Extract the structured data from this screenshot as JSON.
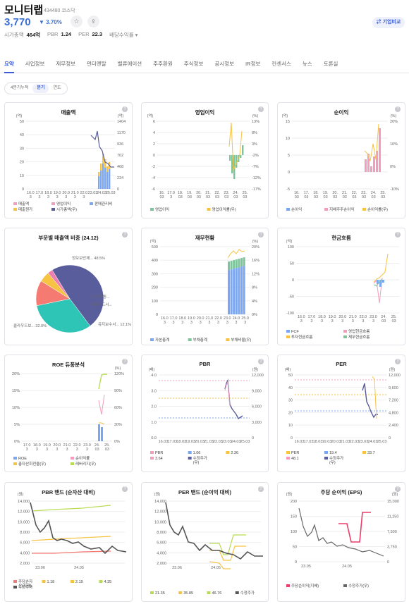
{
  "header": {
    "title": "모니터랩",
    "code": "434480 코스닥",
    "price": "3,770",
    "change": "▼ 3.70%",
    "star_icon": "☆",
    "share_icon": "⇪",
    "compare_button": "⇄ 기업비교",
    "metrics": [
      {
        "label": "시가총액",
        "value": "464억"
      },
      {
        "label": "PBR",
        "value": "1.24"
      },
      {
        "label": "PER",
        "value": "22.3"
      },
      {
        "label": "배당수익률 ▾",
        "value": ""
      }
    ]
  },
  "tabs": [
    "요약",
    "사업정보",
    "재무정보",
    "펀더멘탈",
    "밸류에이션",
    "주주환원",
    "주식정보",
    "공시정보",
    "IR정보",
    "컨센서스",
    "뉴스",
    "토론실"
  ],
  "period": [
    "4분기누적",
    "분기",
    "연도"
  ],
  "colors": {
    "accent": "#3b5bd8",
    "blue": "#7aa6f2",
    "orange": "#f6c343",
    "pink": "#f39cbe",
    "green": "#7cc49a",
    "purple": "#5a5d9c",
    "red": "#e83e6a"
  },
  "cards": {
    "sales": {
      "title": "매출액",
      "yl": "(억)",
      "yr": "(억)",
      "yl_ticks": [
        "50",
        "40",
        "30",
        "20",
        "10",
        "0"
      ],
      "yr_ticks": [
        "1404",
        "1170",
        "936",
        "702",
        "468",
        "234",
        "0"
      ],
      "x": [
        "16.0\n3",
        "17.0\n3",
        "18.0\n3",
        "19.0\n3",
        "20.0\n3",
        "21.0\n3",
        "22.0\n3",
        "23.03",
        "24.03",
        "25.03"
      ],
      "legend": [
        "매출액",
        "영업이익",
        "판매관리비",
        "매출원가",
        "시가총액(우)"
      ]
    },
    "op": {
      "title": "영업이익",
      "yl": "(억)",
      "yr": "(%)",
      "yl_ticks": [
        "6",
        "4",
        "2",
        "0",
        "-2",
        "-4",
        "-6"
      ],
      "yr_ticks": [
        "13%",
        "8%",
        "3%",
        "-2%",
        "-7%",
        "-12%",
        "-17%"
      ],
      "x": [
        "16.\n03",
        "17.0\n3",
        "18.\n03",
        "19.\n03",
        "20.\n03",
        "21.\n03",
        "22.\n03",
        "23.\n03",
        "24.\n03",
        "25.\n03"
      ],
      "legend": [
        "영업이익",
        "영업이익률(우)"
      ]
    },
    "net": {
      "title": "순이익",
      "yl": "(억)",
      "yr": "(%)",
      "yl_ticks": [
        "15",
        "10",
        "5",
        "0",
        "-5"
      ],
      "yr_ticks": [
        "20%",
        "10%",
        "0%",
        "-10%"
      ],
      "x": [
        "16.\n03",
        "17.\n03",
        "18.\n03",
        "19.\n03",
        "20.\n03",
        "21.\n03",
        "22.\n03",
        "23.\n03",
        "24.\n03",
        "25.\n03"
      ],
      "legend": [
        "순이익",
        "지배주주순이익",
        "순이익률(우)"
      ]
    },
    "segment": {
      "title": "부문별 매출액 비중 (24.12)",
      "chart_data": {
        "type": "pie",
        "labels": [
          "정보보안제...",
          "클라우드보...",
          "유지보수서...",
          "매니지드서...",
          "기타(부동..."
        ],
        "values": [
          48.5,
          32.0,
          12.1,
          5.0,
          2.4
        ],
        "colors": [
          "#5a5d9c",
          "#2ec4b6",
          "#f47a72",
          "#f6c343",
          "#ef7fb0"
        ],
        "display": [
          "정보보안제... 48.5%",
          "클라우드보... 32.0%",
          "유지보수서... 12.1%",
          "매니지드서...",
          "기타(부동..."
        ]
      }
    },
    "fin": {
      "title": "재무현황",
      "yl": "(억)",
      "yr": "(%)",
      "yl_ticks": [
        "500",
        "400",
        "300",
        "200",
        "100",
        "0"
      ],
      "yr_ticks": [
        "20%",
        "16%",
        "12%",
        "8%",
        "4%",
        "0%"
      ],
      "x": [
        "16.0\n3",
        "17.0\n3",
        "18.0\n3",
        "19.0\n3",
        "20.0\n3",
        "21.0\n3",
        "22.0\n3",
        "23.0\n3",
        "24.0\n3",
        "25.0\n3"
      ],
      "legend": [
        "자본총계",
        "부채총계",
        "부채비율(우)"
      ]
    },
    "cash": {
      "title": "현금흐름",
      "yl": "(억)",
      "yl_ticks": [
        "100",
        "50",
        "0",
        "-50",
        "-100"
      ],
      "x": [
        "16.0\n3",
        "17.0\n3",
        "18.0\n3",
        "19.0\n3",
        "20.0\n3",
        "21.0\n3",
        "22.0\n3",
        "23.0\n3",
        "24.\n03",
        "25.\n03"
      ],
      "legend": [
        "FCF",
        "영업현금흐름",
        "투자현금흐름",
        "재무현금흐름"
      ]
    },
    "roe": {
      "title": "ROE 듀퐁분석",
      "yr": "(%)",
      "yl_ticks": [
        "20%",
        "15%",
        "10%",
        "5%",
        "0%"
      ],
      "yr_ticks": [
        "120%",
        "90%",
        "60%",
        "30%",
        "0%"
      ],
      "x": [
        "17.0\n3",
        "18.0\n3",
        "19.0\n3",
        "20.0\n3",
        "21.0\n3",
        "22.0\n3",
        "23.0\n3",
        "24.\n03",
        "25.\n03"
      ],
      "legend": [
        "ROE",
        "순이익률",
        "총자산회전율(우)",
        "레버리지(우)"
      ]
    },
    "pbr": {
      "title": "PBR",
      "yl": "(배)",
      "yr": "(원)",
      "yl_ticks": [
        "4.0",
        "3.0",
        "2.0",
        "1.0",
        "0.0"
      ],
      "yr_ticks": [
        "12,000",
        "9,000",
        "6,000",
        "3,000",
        "0"
      ],
      "x": [
        "16.03",
        "17.03",
        "18.03",
        "19.03",
        "20.03",
        "21.03",
        "22.03",
        "23.03",
        "24.03",
        "25.03"
      ],
      "legend": [
        "PBR",
        "1.06",
        "2.36",
        "3.64",
        "수정주가\n(우)"
      ]
    },
    "per": {
      "title": "PER",
      "yl": "(배)",
      "yr": "(원)",
      "yl_ticks": [
        "50",
        "40",
        "30",
        "20",
        "10",
        "0"
      ],
      "yr_ticks": [
        "12,000",
        "9,600",
        "7,200",
        "4,800",
        "2,400",
        "0"
      ],
      "x": [
        "16.03",
        "17.03",
        "18.03",
        "19.03",
        "20.03",
        "21.03",
        "22.03",
        "23.03",
        "24.03",
        "25.03"
      ],
      "legend": [
        "PER",
        "19.4",
        "33.7",
        "48.1",
        "수정주가\n(우)"
      ]
    },
    "pbrband": {
      "title": "PBR 밴드 (순자산 대비)",
      "yl": "(원)",
      "yl_ticks": [
        "14,000",
        "12,000",
        "10,000",
        "8,000",
        "6,000",
        "4,000",
        "2,000"
      ],
      "x": [
        "23.06",
        "24.05"
      ],
      "legend": [
        "주당순자\n산(지배)",
        "1.18",
        "2.19",
        "4.35",
        "수정주가"
      ]
    },
    "perband": {
      "title": "PER 밴드 (순이익 대비)",
      "yl": "(원)",
      "yl_ticks": [
        "14,000",
        "12,000",
        "10,000",
        "8,000",
        "6,000",
        "4,000",
        "2,000"
      ],
      "x": [
        "23.06",
        "24.05"
      ],
      "legend": [
        "21.35",
        "35.85",
        "46.76",
        "수정주가"
      ]
    },
    "eps": {
      "title": "주당 순이익 (EPS)",
      "yl": "(원)",
      "yr": "(원)",
      "yl_ticks": [
        "200",
        "150",
        "100",
        "50",
        "0"
      ],
      "yr_ticks": [
        "15,000",
        "11,250",
        "7,500",
        "3,750",
        "0"
      ],
      "x": [
        "23.05",
        "24.05"
      ],
      "legend": [
        "주당순이익(지배)",
        "수정주가(우)"
      ]
    }
  }
}
